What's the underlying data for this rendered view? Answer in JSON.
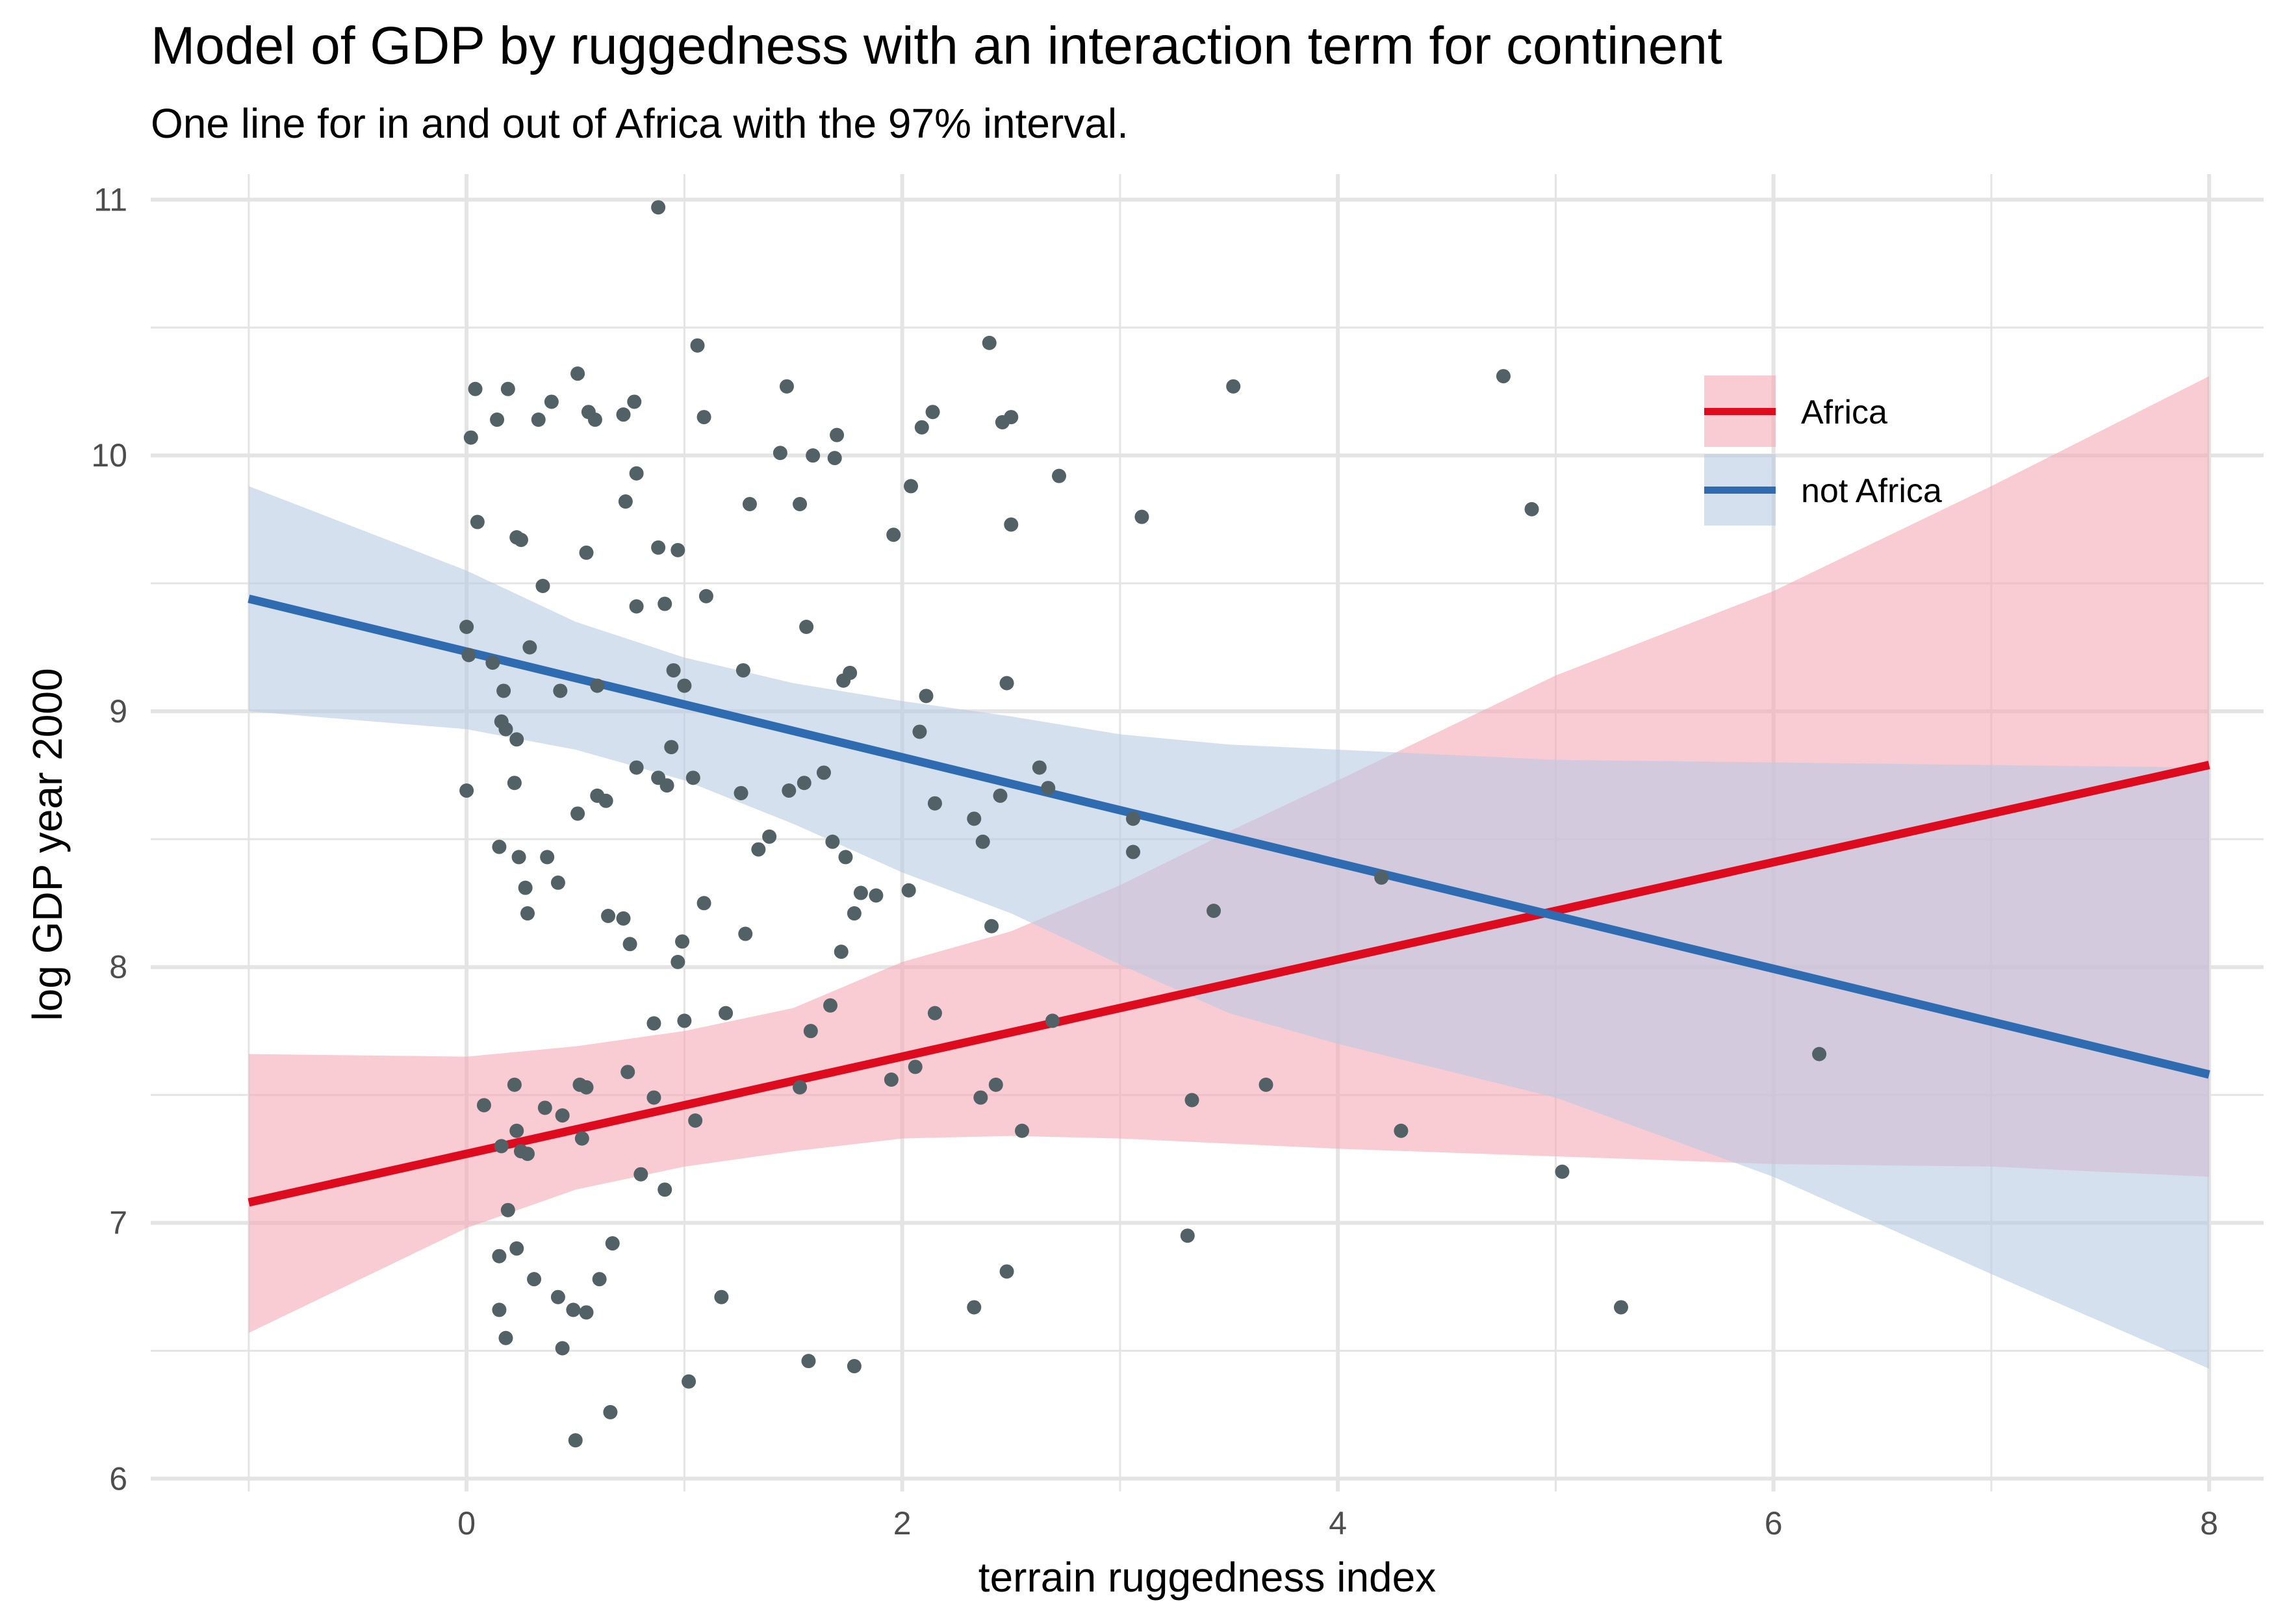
{
  "chart_data": {
    "type": "scatter",
    "title": "Model of GDP by ruggedness with an interaction term for continent",
    "subtitle": "One line for in and out of Africa with the 97% interval.",
    "xlabel": "terrain ruggedness index",
    "ylabel": "log GDP year 2000",
    "xlim": [
      -1.45,
      8.25
    ],
    "ylim": [
      5.95,
      11.1
    ],
    "x_ticks": [
      0,
      2,
      4,
      6,
      8
    ],
    "y_ticks": [
      6,
      7,
      8,
      9,
      10,
      11
    ],
    "x_minor": [
      -1,
      1,
      3,
      5,
      7
    ],
    "y_minor": [
      6.5,
      7.5,
      8.5,
      9.5,
      10.5
    ],
    "grid": true,
    "legend_position": "top-right",
    "colors": {
      "points": "#526166",
      "grid": "#e4e4e4",
      "africa_line": "#de0b1f",
      "africa_band": "#f5a9b4",
      "not_africa_line": "#2f6bb0",
      "not_africa_band": "#b9cce5"
    },
    "series": [
      {
        "name": "Africa",
        "color": "#de0b1f",
        "band_color": "#f5a9b4",
        "line": [
          [
            -1.0,
            7.08
          ],
          [
            8.0,
            8.79
          ]
        ],
        "band_x": [
          -1.0,
          0.0,
          0.5,
          1.0,
          1.5,
          2.0,
          2.5,
          3.0,
          3.5,
          4.0,
          5.0,
          6.0,
          7.0,
          8.0
        ],
        "band_lower": [
          6.57,
          6.98,
          7.13,
          7.22,
          7.28,
          7.33,
          7.34,
          7.33,
          7.31,
          7.29,
          7.26,
          7.23,
          7.22,
          7.18
        ],
        "band_upper": [
          7.66,
          7.65,
          7.69,
          7.75,
          7.84,
          8.02,
          8.14,
          8.32,
          8.53,
          8.73,
          9.14,
          9.47,
          9.88,
          10.31
        ]
      },
      {
        "name": "not Africa",
        "color": "#2f6bb0",
        "band_color": "#b9cce5",
        "line": [
          [
            -1.0,
            9.44
          ],
          [
            8.0,
            7.58
          ]
        ],
        "band_x": [
          -1.0,
          0.0,
          0.5,
          1.0,
          1.5,
          2.0,
          2.5,
          3.0,
          3.5,
          4.0,
          5.0,
          6.0,
          7.0,
          8.0
        ],
        "band_lower": [
          9.0,
          8.93,
          8.85,
          8.73,
          8.56,
          8.37,
          8.21,
          8.01,
          7.82,
          7.7,
          7.49,
          7.18,
          6.8,
          6.43
        ],
        "band_upper": [
          9.88,
          9.55,
          9.35,
          9.21,
          9.11,
          9.04,
          8.98,
          8.91,
          8.87,
          8.85,
          8.81,
          8.8,
          8.79,
          8.78
        ]
      }
    ],
    "points": [
      [
        0.88,
        10.97
      ],
      [
        0.04,
        10.26
      ],
      [
        0.19,
        10.26
      ],
      [
        0.51,
        10.32
      ],
      [
        0.77,
        10.21
      ],
      [
        1.06,
        10.43
      ],
      [
        1.47,
        10.27
      ],
      [
        2.4,
        10.44
      ],
      [
        3.52,
        10.27
      ],
      [
        4.76,
        10.31
      ],
      [
        0.02,
        10.07
      ],
      [
        0.14,
        10.14
      ],
      [
        0.33,
        10.14
      ],
      [
        0.39,
        10.21
      ],
      [
        0.56,
        10.17
      ],
      [
        0.59,
        10.14
      ],
      [
        0.72,
        10.16
      ],
      [
        1.09,
        10.15
      ],
      [
        1.44,
        10.01
      ],
      [
        1.59,
        10.0
      ],
      [
        1.69,
        9.99
      ],
      [
        1.7,
        10.08
      ],
      [
        2.09,
        10.11
      ],
      [
        2.14,
        10.17
      ],
      [
        2.46,
        10.13
      ],
      [
        2.5,
        10.15
      ],
      [
        0.05,
        9.74
      ],
      [
        0.23,
        9.68
      ],
      [
        0.25,
        9.67
      ],
      [
        0.55,
        9.62
      ],
      [
        0.73,
        9.82
      ],
      [
        0.78,
        9.93
      ],
      [
        0.88,
        9.64
      ],
      [
        0.97,
        9.63
      ],
      [
        1.3,
        9.81
      ],
      [
        1.53,
        9.81
      ],
      [
        1.96,
        9.69
      ],
      [
        2.04,
        9.88
      ],
      [
        2.5,
        9.73
      ],
      [
        2.72,
        9.92
      ],
      [
        3.1,
        9.76
      ],
      [
        4.89,
        9.79
      ],
      [
        0.0,
        9.33
      ],
      [
        0.01,
        9.22
      ],
      [
        0.12,
        9.19
      ],
      [
        0.17,
        9.08
      ],
      [
        0.23,
        8.89
      ],
      [
        0.29,
        9.25
      ],
      [
        0.35,
        9.49
      ],
      [
        0.43,
        9.08
      ],
      [
        0.6,
        9.1
      ],
      [
        0.78,
        9.41
      ],
      [
        0.91,
        9.42
      ],
      [
        0.95,
        9.16
      ],
      [
        1.0,
        9.1
      ],
      [
        1.1,
        9.45
      ],
      [
        1.27,
        9.16
      ],
      [
        1.56,
        9.33
      ],
      [
        1.73,
        9.12
      ],
      [
        1.76,
        9.15
      ],
      [
        2.11,
        9.06
      ],
      [
        2.48,
        9.11
      ],
      [
        2.08,
        8.92
      ],
      [
        0.0,
        8.69
      ],
      [
        0.16,
        8.96
      ],
      [
        0.18,
        8.93
      ],
      [
        0.22,
        8.72
      ],
      [
        0.24,
        8.43
      ],
      [
        0.27,
        8.31
      ],
      [
        0.28,
        8.21
      ],
      [
        0.37,
        8.43
      ],
      [
        0.42,
        8.33
      ],
      [
        0.51,
        8.6
      ],
      [
        0.6,
        8.67
      ],
      [
        0.64,
        8.65
      ],
      [
        0.65,
        8.2
      ],
      [
        0.72,
        8.19
      ],
      [
        0.75,
        8.09
      ],
      [
        0.78,
        8.78
      ],
      [
        0.88,
        8.74
      ],
      [
        0.92,
        8.71
      ],
      [
        0.94,
        8.86
      ],
      [
        0.97,
        8.02
      ],
      [
        0.99,
        8.1
      ],
      [
        1.04,
        8.74
      ],
      [
        1.09,
        8.25
      ],
      [
        1.26,
        8.68
      ],
      [
        1.28,
        8.13
      ],
      [
        1.34,
        8.46
      ],
      [
        1.39,
        8.51
      ],
      [
        1.48,
        8.69
      ],
      [
        1.55,
        8.72
      ],
      [
        1.64,
        8.76
      ],
      [
        1.68,
        8.49
      ],
      [
        1.72,
        8.06
      ],
      [
        1.74,
        8.43
      ],
      [
        1.78,
        8.21
      ],
      [
        1.81,
        8.29
      ],
      [
        1.88,
        8.28
      ],
      [
        2.03,
        8.3
      ],
      [
        2.15,
        8.64
      ],
      [
        2.33,
        8.58
      ],
      [
        2.37,
        8.49
      ],
      [
        2.41,
        8.16
      ],
      [
        2.45,
        8.67
      ],
      [
        2.63,
        8.78
      ],
      [
        2.67,
        8.7
      ],
      [
        3.06,
        8.58
      ],
      [
        3.06,
        8.45
      ],
      [
        3.43,
        8.22
      ],
      [
        4.2,
        8.35
      ],
      [
        0.15,
        8.47
      ],
      [
        0.08,
        7.46
      ],
      [
        0.16,
        7.3
      ],
      [
        0.22,
        7.54
      ],
      [
        0.23,
        7.36
      ],
      [
        0.25,
        7.28
      ],
      [
        0.28,
        7.27
      ],
      [
        0.36,
        7.45
      ],
      [
        0.44,
        7.42
      ],
      [
        0.52,
        7.54
      ],
      [
        0.53,
        7.33
      ],
      [
        0.55,
        7.53
      ],
      [
        0.74,
        7.59
      ],
      [
        0.86,
        7.78
      ],
      [
        0.86,
        7.49
      ],
      [
        1.0,
        7.79
      ],
      [
        1.05,
        7.4
      ],
      [
        1.19,
        7.82
      ],
      [
        1.53,
        7.53
      ],
      [
        1.58,
        7.75
      ],
      [
        1.67,
        7.85
      ],
      [
        1.95,
        7.56
      ],
      [
        2.06,
        7.61
      ],
      [
        2.15,
        7.82
      ],
      [
        2.36,
        7.49
      ],
      [
        2.43,
        7.54
      ],
      [
        2.55,
        7.36
      ],
      [
        2.69,
        7.79
      ],
      [
        3.33,
        7.48
      ],
      [
        3.67,
        7.54
      ],
      [
        4.29,
        7.36
      ],
      [
        5.03,
        7.2
      ],
      [
        6.21,
        7.66
      ],
      [
        0.19,
        7.05
      ],
      [
        0.15,
        6.87
      ],
      [
        0.23,
        6.9
      ],
      [
        0.31,
        6.78
      ],
      [
        0.42,
        6.71
      ],
      [
        0.49,
        6.66
      ],
      [
        0.55,
        6.65
      ],
      [
        0.61,
        6.78
      ],
      [
        0.67,
        6.92
      ],
      [
        0.8,
        7.19
      ],
      [
        0.91,
        7.13
      ],
      [
        1.17,
        6.71
      ],
      [
        0.15,
        6.66
      ],
      [
        0.18,
        6.55
      ],
      [
        0.44,
        6.51
      ],
      [
        0.66,
        6.26
      ],
      [
        0.5,
        6.15
      ],
      [
        1.02,
        6.38
      ],
      [
        1.57,
        6.46
      ],
      [
        1.78,
        6.44
      ],
      [
        2.33,
        6.67
      ],
      [
        2.48,
        6.81
      ],
      [
        3.31,
        6.95
      ],
      [
        5.3,
        6.67
      ]
    ]
  }
}
